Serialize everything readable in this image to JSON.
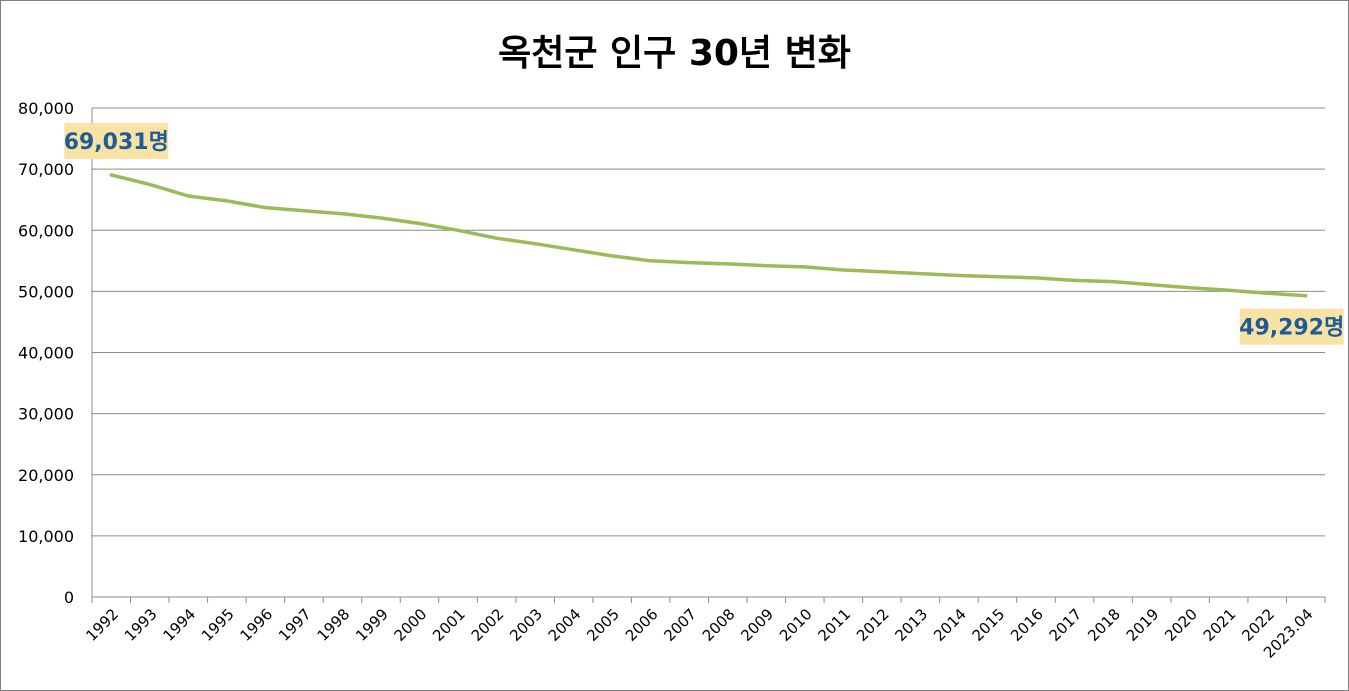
{
  "chart_data": {
    "type": "line",
    "title": "옥천군 인구 30년 변화",
    "xlabel": "",
    "ylabel": "",
    "ylim": [
      0,
      80000
    ],
    "yticks": [
      "0",
      "10,000",
      "20,000",
      "30,000",
      "40,000",
      "50,000",
      "60,000",
      "70,000",
      "80,000"
    ],
    "categories": [
      "1992",
      "1993",
      "1994",
      "1995",
      "1996",
      "1997",
      "1998",
      "1999",
      "2000",
      "2001",
      "2002",
      "2003",
      "2004",
      "2005",
      "2006",
      "2007",
      "2008",
      "2009",
      "2010",
      "2011",
      "2012",
      "2013",
      "2014",
      "2015",
      "2016",
      "2017",
      "2018",
      "2019",
      "2020",
      "2021",
      "2022",
      "2023.04"
    ],
    "grid": true,
    "legend": "none",
    "series": [
      {
        "color": "#9bbb59",
        "values": [
          69031,
          67500,
          65600,
          64800,
          63700,
          63200,
          62700,
          62000,
          61100,
          60000,
          58700,
          57800,
          56800,
          55800,
          55000,
          54700,
          54500,
          54200,
          54000,
          53500,
          53200,
          52900,
          52600,
          52400,
          52200,
          51800,
          51600,
          51100,
          50600,
          50200,
          49700,
          49292
        ]
      }
    ],
    "annotations": [
      {
        "index": 0,
        "text": "69,031명"
      },
      {
        "index": 31,
        "text": "49,292명"
      }
    ]
  }
}
